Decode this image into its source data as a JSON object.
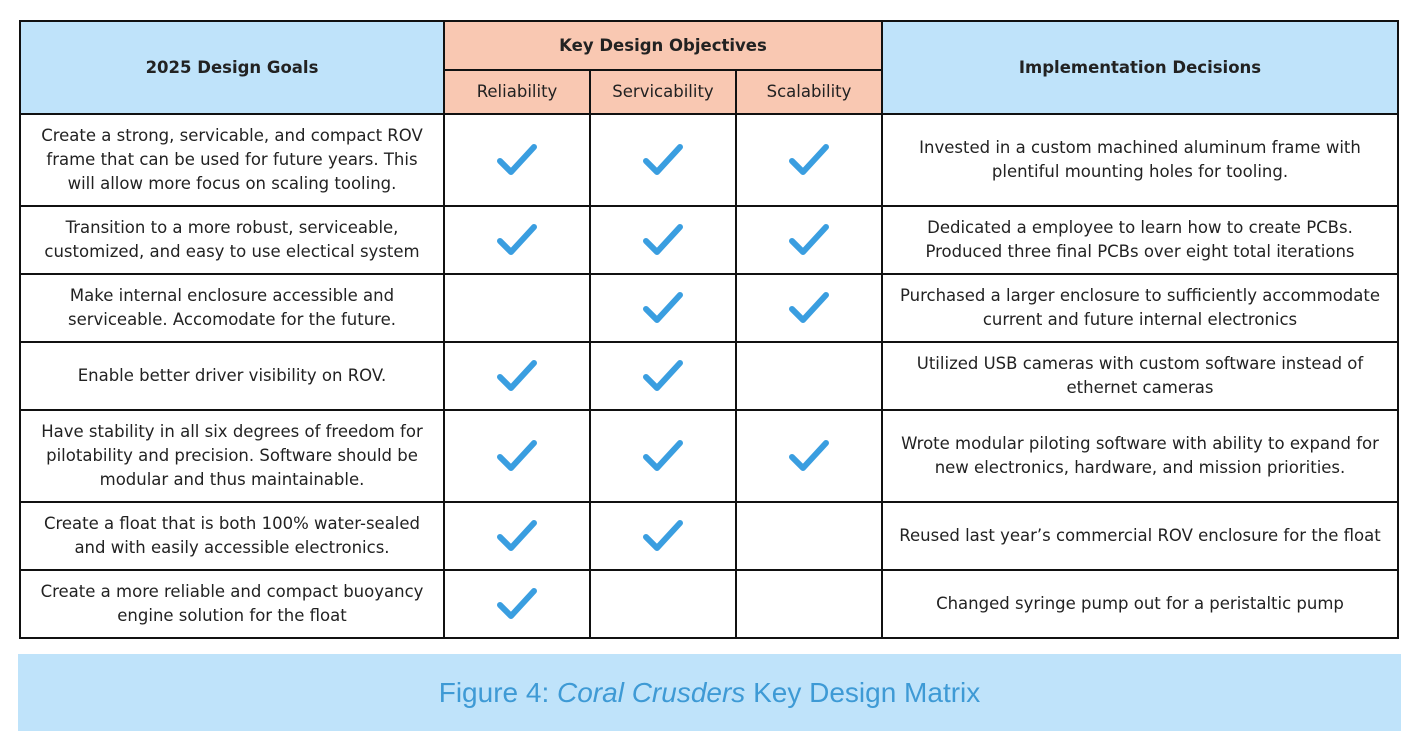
{
  "table": {
    "headers": {
      "goals": "2025 Design Goals",
      "objectives": "Key Design Objectives",
      "reliability": "Reliability",
      "servicability": "Servicability",
      "scalability": "Scalability",
      "implementation": "Implementation Decisions"
    },
    "rows": [
      {
        "goal": "Create a strong, servicable, and compact ROV frame that can be used for future years. This will allow more focus on scaling tooling.",
        "reliability": true,
        "servicability": true,
        "scalability": true,
        "implementation": "Invested in a custom machined aluminum frame with plentiful mounting holes for tooling."
      },
      {
        "goal": "Transition to a more robust, serviceable, customized, and easy to use electical system",
        "reliability": true,
        "servicability": true,
        "scalability": true,
        "implementation": "Dedicated a employee to learn how to create PCBs. Produced three final PCBs over eight total iterations"
      },
      {
        "goal": "Make internal enclosure accessible and serviceable. Accomodate for the future.",
        "reliability": false,
        "servicability": true,
        "scalability": true,
        "implementation": "Purchased a larger enclosure to sufficiently accommodate current and future internal electronics"
      },
      {
        "goal": "Enable better driver visibility on ROV.",
        "reliability": true,
        "servicability": true,
        "scalability": false,
        "implementation": "Utilized USB cameras with custom software instead of ethernet cameras"
      },
      {
        "goal": "Have stability in all six degrees of freedom for pilotability and precision. Software should be modular and thus maintainable.",
        "reliability": true,
        "servicability": true,
        "scalability": true,
        "implementation": "Wrote modular piloting software with ability to expand for new electronics, hardware, and mission priorities."
      },
      {
        "goal": "Create a float that is both 100% water-sealed and with easily accessible electronics.",
        "reliability": true,
        "servicability": true,
        "scalability": false,
        "implementation": "Reused last year’s commercial ROV enclosure for the float"
      },
      {
        "goal": "Create a more reliable and compact buoyancy engine solution for the float",
        "reliability": true,
        "servicability": false,
        "scalability": false,
        "implementation": "Changed syringe pump out for a peristaltic pump"
      }
    ],
    "check_color": "#3a9ee0"
  },
  "caption": {
    "prefix": "Figure 4: ",
    "team": "Coral Crusders",
    "suffix": " Key Design Matrix",
    "color": "#3e9ad5",
    "background": "#bfe3fa"
  }
}
